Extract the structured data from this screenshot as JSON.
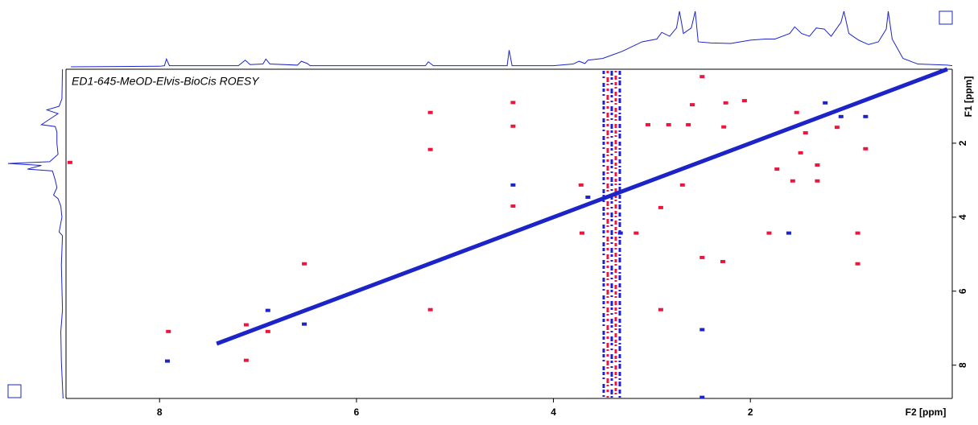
{
  "chart_data": {
    "type": "scatter",
    "title": "ED1-645-MeOD-Elvis-BioCis ROESY",
    "x_label": "F2 [ppm]",
    "y_label": "F1 [ppm]",
    "xlim": [
      8.95,
      -0.05
    ],
    "ylim": [
      8.9,
      0
    ],
    "xticks": [
      8,
      6,
      4,
      2
    ],
    "yticks": [
      2,
      4,
      6,
      8
    ],
    "series": [
      {
        "color": "#e8173d",
        "x": [
          5.25,
          5.25,
          5.25,
          4.41,
          4.41,
          4.41,
          8.91,
          7.91,
          7.12,
          6.9,
          6.53,
          7.12,
          3.72,
          3.71,
          3.04,
          2.83,
          2.91,
          2.49,
          2.49,
          2.69,
          2.63,
          2.59,
          2.27,
          2.25,
          2.06,
          2.28,
          1.73,
          1.57,
          1.53,
          1.44,
          1.49,
          1.32,
          1.32,
          1.81,
          0.91,
          0.91,
          0.83,
          1.12,
          3.16,
          2.91
        ],
        "values": [
          1.17,
          2.17,
          6.5,
          0.9,
          1.54,
          3.7,
          2.52,
          7.09,
          6.91,
          7.09,
          5.26,
          7.87,
          3.13,
          4.43,
          1.5,
          1.5,
          3.74,
          0.2,
          5.09,
          3.13,
          1.5,
          0.96,
          1.56,
          0.91,
          0.85,
          5.2,
          2.7,
          3.02,
          1.17,
          1.72,
          2.26,
          2.59,
          3.02,
          4.43,
          4.43,
          5.26,
          2.15,
          1.57,
          4.43,
          6.5
        ]
      },
      {
        "color": "#1c24c8",
        "x": [
          4.41,
          7.92,
          6.9,
          6.53,
          3.65,
          2.49,
          2.49,
          1.61,
          0.83,
          1.08,
          1.24,
          3.32
        ],
        "values": [
          3.13,
          7.89,
          6.52,
          6.89,
          3.46,
          7.04,
          8.87,
          4.43,
          1.28,
          1.28,
          0.91,
          4.43
        ]
      }
    ],
    "diagonal": {
      "color": "#1c24c8",
      "x": [
        7.42,
        0
      ],
      "values": [
        7.42,
        0
      ]
    },
    "f2_projection": {
      "color": "#1c24c8",
      "ylim": [
        0,
        100
      ],
      "x": [
        8.9,
        8.0,
        7.95,
        7.93,
        7.9,
        7.2,
        7.13,
        7.08,
        6.95,
        6.92,
        6.88,
        6.6,
        6.56,
        6.5,
        6.47,
        5.3,
        5.27,
        5.22,
        4.47,
        4.45,
        4.42,
        4.0,
        3.8,
        3.74,
        3.68,
        3.65,
        3.5,
        3.3,
        3.1,
        2.95,
        2.9,
        2.82,
        2.75,
        2.72,
        2.68,
        2.6,
        2.56,
        2.53,
        2.4,
        2.2,
        2.0,
        1.85,
        1.75,
        1.6,
        1.55,
        1.48,
        1.4,
        1.33,
        1.25,
        1.18,
        1.08,
        1.05,
        1.0,
        0.9,
        0.8,
        0.7,
        0.62,
        0.6,
        0.56,
        0.45,
        0.3,
        0.0,
        -0.05
      ],
      "values": [
        0,
        1,
        2,
        14,
        2,
        2,
        12,
        4,
        5,
        14,
        5,
        3,
        10,
        6,
        2,
        2,
        9,
        2,
        2,
        30,
        2,
        2,
        5,
        10,
        6,
        12,
        15,
        28,
        45,
        50,
        62,
        55,
        70,
        100,
        60,
        70,
        100,
        45,
        43,
        42,
        48,
        50,
        50,
        60,
        72,
        60,
        55,
        70,
        68,
        55,
        80,
        100,
        60,
        48,
        40,
        45,
        68,
        100,
        50,
        15,
        5,
        3,
        2
      ]
    },
    "f1_projection": {
      "color": "#1c24c8",
      "xlim": [
        0,
        100
      ],
      "y": [
        0.0,
        0.8,
        1.0,
        1.1,
        1.2,
        1.3,
        1.45,
        1.5,
        1.55,
        1.7,
        2.0,
        2.3,
        2.5,
        2.55,
        2.6,
        2.7,
        2.75,
        3.0,
        3.2,
        3.4,
        3.5,
        3.7,
        4.0,
        4.4,
        4.5,
        5.3,
        6.5,
        6.9,
        7.1,
        7.9,
        8.9
      ],
      "values": [
        2,
        3,
        8,
        30,
        10,
        20,
        35,
        40,
        15,
        12,
        12,
        10,
        25,
        100,
        40,
        65,
        20,
        15,
        12,
        18,
        10,
        5,
        3,
        8,
        2,
        4,
        2,
        4,
        5,
        4,
        1
      ]
    }
  }
}
